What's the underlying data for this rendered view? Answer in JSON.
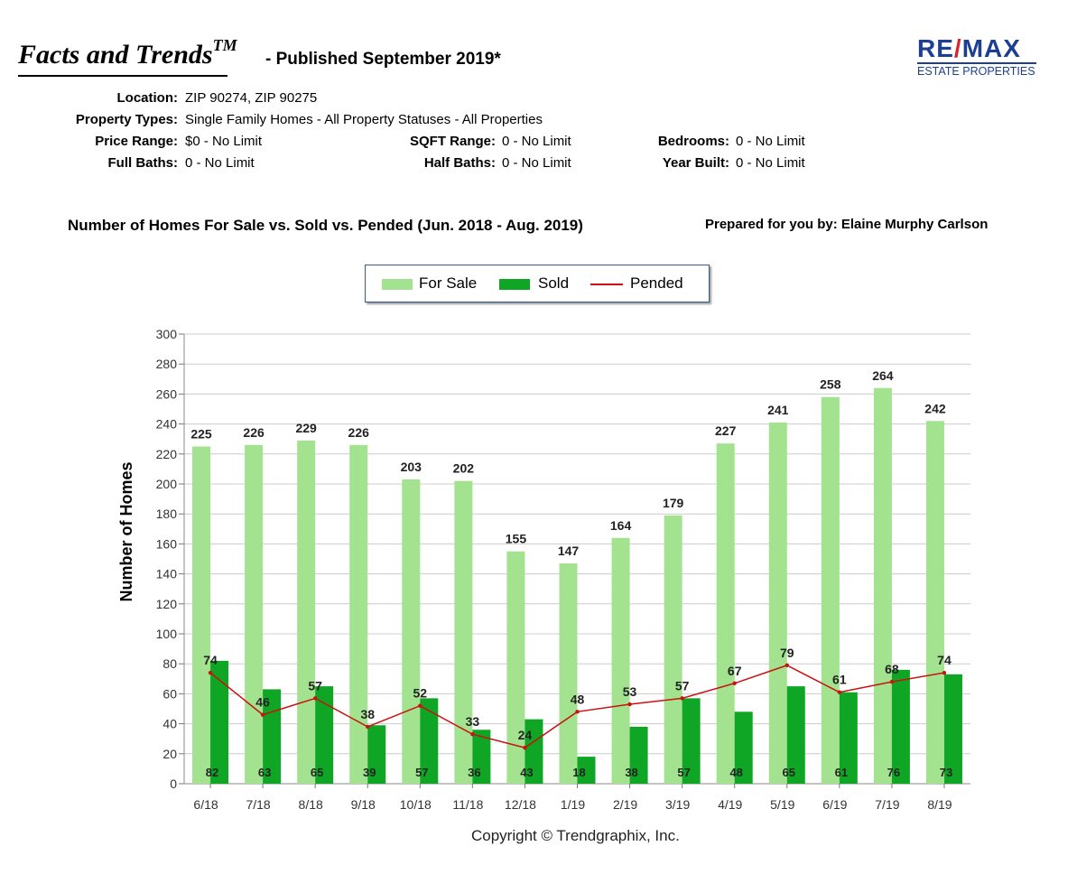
{
  "header": {
    "title": "Facts and Trends",
    "title_tm": "TM",
    "published": "- Published September 2019*",
    "logo_main_1": "RE",
    "logo_slash": "/",
    "logo_main_2": "MAX",
    "logo_sub": "ESTATE PROPERTIES"
  },
  "criteria": {
    "location_label": "Location:",
    "location": "ZIP 90274, ZIP 90275",
    "types_label": "Property Types:",
    "types": "Single Family Homes - All Property Statuses - All Properties",
    "price_label": "Price Range:",
    "price": "$0 - No Limit",
    "sqft_label": "SQFT Range:",
    "sqft": "0 - No Limit",
    "bedrooms_label": "Bedrooms:",
    "bedrooms": "0 - No Limit",
    "fullbaths_label": "Full Baths:",
    "fullbaths": "0 - No Limit",
    "halfbaths_label": "Half Baths:",
    "halfbaths": "0 - No Limit",
    "yearbuilt_label": "Year Built:",
    "yearbuilt": "0 - No Limit"
  },
  "subtitle": "Number of Homes For Sale vs. Sold vs. Pended (Jun. 2018 - Aug. 2019)",
  "prepared": "Prepared for you by: Elaine Murphy Carlson",
  "copyright": "Copyright © Trendgraphix, Inc.",
  "colors": {
    "for_sale": "#a3e28f",
    "sold": "#0ea624",
    "pended": "#cc1111",
    "grid": "#cccccc"
  },
  "chart_data": {
    "type": "bar",
    "ylabel": "Number of Homes",
    "ylim": [
      0,
      300
    ],
    "yticks": [
      0,
      20,
      40,
      60,
      80,
      100,
      120,
      140,
      160,
      180,
      200,
      220,
      240,
      260,
      280,
      300
    ],
    "grid": true,
    "legend_position": "top-center",
    "categories": [
      "6/18",
      "7/18",
      "8/18",
      "9/18",
      "10/18",
      "11/18",
      "12/18",
      "1/19",
      "2/19",
      "3/19",
      "4/19",
      "5/19",
      "6/19",
      "7/19",
      "8/19"
    ],
    "series": [
      {
        "name": "For Sale",
        "type": "bar",
        "values": [
          225,
          226,
          229,
          226,
          203,
          202,
          155,
          147,
          164,
          179,
          227,
          241,
          258,
          264,
          242
        ]
      },
      {
        "name": "Sold",
        "type": "bar",
        "values": [
          82,
          63,
          65,
          39,
          57,
          36,
          43,
          18,
          38,
          57,
          48,
          65,
          61,
          76,
          73
        ]
      },
      {
        "name": "Pended",
        "type": "line",
        "values": [
          74,
          46,
          57,
          38,
          52,
          33,
          24,
          48,
          53,
          57,
          67,
          79,
          61,
          68,
          74
        ]
      }
    ]
  }
}
